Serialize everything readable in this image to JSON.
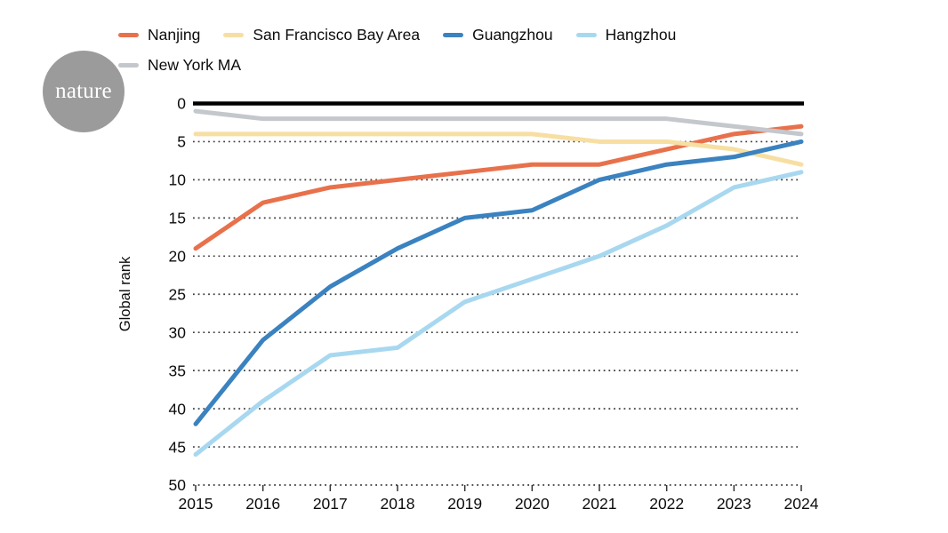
{
  "brand": {
    "logo_text": "nature"
  },
  "chart_data": {
    "type": "line",
    "title": "",
    "ylabel": "Global rank",
    "xlabel": "",
    "x": [
      2015,
      2016,
      2017,
      2018,
      2019,
      2020,
      2021,
      2022,
      2023,
      2024
    ],
    "x_tick_labels": [
      "2015",
      "2016",
      "2017",
      "2018",
      "2019",
      "2020",
      "2021",
      "2022",
      "2023",
      "2024"
    ],
    "y_ticks": [
      0,
      5,
      10,
      15,
      20,
      25,
      30,
      35,
      40,
      45,
      50
    ],
    "ylim": [
      0,
      50
    ],
    "y_axis_inverted": true,
    "grid": "horizontal dotted lines at every 5 ranks, solid black line at rank 0",
    "legend_position": "top, two rows, left-aligned",
    "line_style": {
      "stroke_width": 5,
      "linejoin": "round",
      "linecap": "round"
    },
    "series": [
      {
        "name": "Nanjing",
        "color": "#e8714c",
        "values": [
          19,
          13,
          11,
          10,
          9,
          8,
          8,
          6,
          4,
          3
        ]
      },
      {
        "name": "San Francisco Bay Area",
        "color": "#f7dfa3",
        "values": [
          4,
          4,
          4,
          4,
          4,
          4,
          5,
          5,
          6,
          8
        ]
      },
      {
        "name": "Guangzhou",
        "color": "#3a82c0",
        "values": [
          42,
          31,
          24,
          19,
          15,
          14,
          10,
          8,
          7,
          5
        ]
      },
      {
        "name": "Hangzhou",
        "color": "#a8d8f0",
        "values": [
          46,
          39,
          33,
          32,
          26,
          23,
          20,
          16,
          11,
          9
        ]
      },
      {
        "name": "New York MA",
        "color": "#c4c8cd",
        "values": [
          1,
          2,
          2,
          2,
          2,
          2,
          2,
          2,
          3,
          4
        ]
      }
    ],
    "axis_color": "#000000",
    "gridline_color": "#3c3c3c"
  }
}
